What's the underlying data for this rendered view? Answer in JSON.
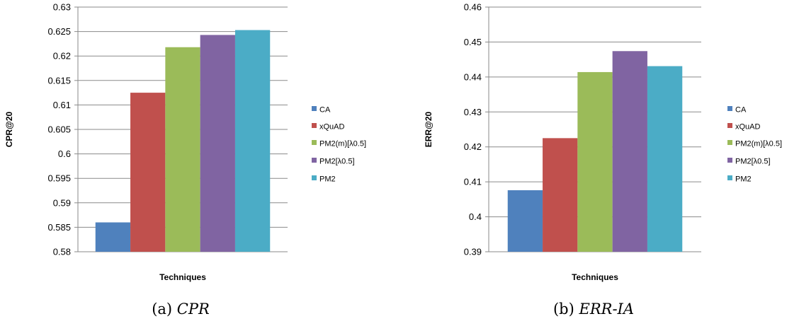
{
  "legend": [
    "CA",
    "xQuAD",
    "PM2(m)[λ0.5]",
    "PM2[λ0.5]",
    "PM2"
  ],
  "colors": [
    "#4f81bd",
    "#c0504d",
    "#9bbb59",
    "#8064a2",
    "#4bacc6"
  ],
  "chart_data": [
    {
      "type": "bar",
      "caption_prefix": "(a) ",
      "caption_main": "CPR",
      "xlabel": "Techniques",
      "ylabel": "CPR@20",
      "ylim": [
        0.58,
        0.63
      ],
      "yticks": [
        0.58,
        0.585,
        0.59,
        0.595,
        0.6,
        0.605,
        0.61,
        0.615,
        0.62,
        0.625,
        0.63
      ],
      "ytick_labels": [
        "0.58",
        "0.585",
        "0.59",
        "0.595",
        "0.6",
        "0.605",
        "0.61",
        "0.615",
        "0.62",
        "0.625",
        "0.63"
      ],
      "grid": true,
      "legend_position": "right",
      "series": [
        {
          "name": "CA",
          "values": [
            0.586
          ]
        },
        {
          "name": "xQuAD",
          "values": [
            0.6125
          ]
        },
        {
          "name": "PM2(m)[λ0.5]",
          "values": [
            0.6218
          ]
        },
        {
          "name": "PM2[λ0.5]",
          "values": [
            0.6243
          ]
        },
        {
          "name": "PM2",
          "values": [
            0.6253
          ]
        }
      ]
    },
    {
      "type": "bar",
      "caption_prefix": "(b) ",
      "caption_main": "ERR-IA",
      "xlabel": "Techniques",
      "ylabel": "ERR@20",
      "ylim": [
        0.39,
        0.46
      ],
      "yticks": [
        0.39,
        0.4,
        0.41,
        0.42,
        0.43,
        0.44,
        0.45,
        0.46
      ],
      "ytick_labels": [
        "0.39",
        "0.4",
        "0.41",
        "0.42",
        "0.43",
        "0.44",
        "0.45",
        "0.46"
      ],
      "grid": true,
      "legend_position": "right",
      "series": [
        {
          "name": "CA",
          "values": [
            0.4076
          ]
        },
        {
          "name": "xQuAD",
          "values": [
            0.4225
          ]
        },
        {
          "name": "PM2(m)[λ0.5]",
          "values": [
            0.4414
          ]
        },
        {
          "name": "PM2[λ0.5]",
          "values": [
            0.4474
          ]
        },
        {
          "name": "PM2",
          "values": [
            0.4431
          ]
        }
      ]
    }
  ]
}
